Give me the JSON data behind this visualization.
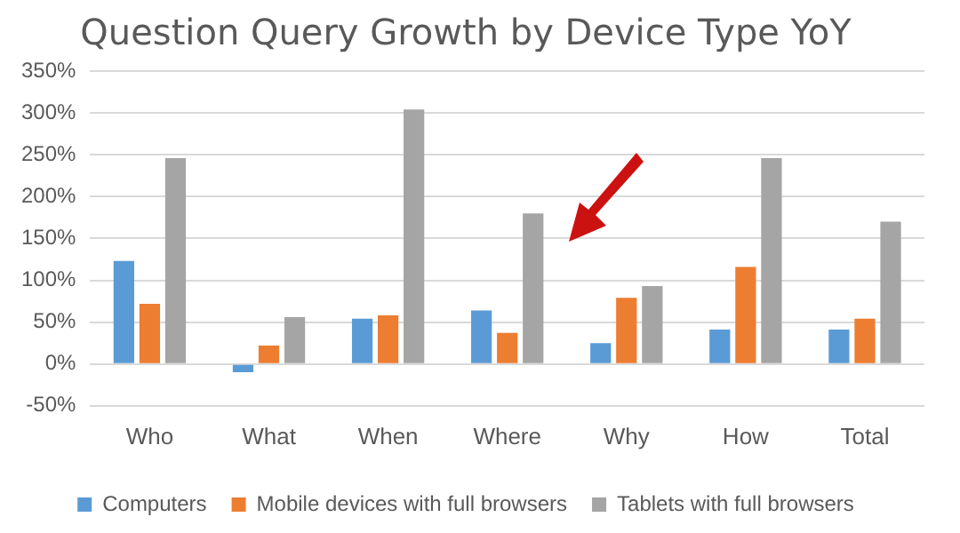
{
  "chart_data": {
    "type": "bar",
    "title": "Question Query Growth by Device Type YoY",
    "categories": [
      "Who",
      "What",
      "When",
      "Where",
      "Why",
      "How",
      "Total"
    ],
    "series": [
      {
        "name": "Computers",
        "color": "#5b9bd5",
        "values": [
          123,
          -10,
          54,
          64,
          25,
          41,
          41
        ]
      },
      {
        "name": "Mobile devices with full browsers",
        "color": "#ed7d31",
        "values": [
          72,
          22,
          58,
          37,
          79,
          116,
          54
        ]
      },
      {
        "name": "Tablets with full browsers",
        "color": "#a5a5a5",
        "values": [
          246,
          56,
          304,
          180,
          93,
          246,
          170
        ]
      }
    ],
    "ylim": [
      -50,
      350
    ],
    "yticks": [
      {
        "value": -50,
        "label": "-50%"
      },
      {
        "value": 0,
        "label": "0%"
      },
      {
        "value": 50,
        "label": "50%"
      },
      {
        "value": 100,
        "label": "100%"
      },
      {
        "value": 150,
        "label": "150%"
      },
      {
        "value": 200,
        "label": "200%"
      },
      {
        "value": 250,
        "label": "250%"
      },
      {
        "value": 300,
        "label": "300%"
      },
      {
        "value": 350,
        "label": "350%"
      }
    ],
    "grid": "y",
    "legend": "bottom"
  }
}
